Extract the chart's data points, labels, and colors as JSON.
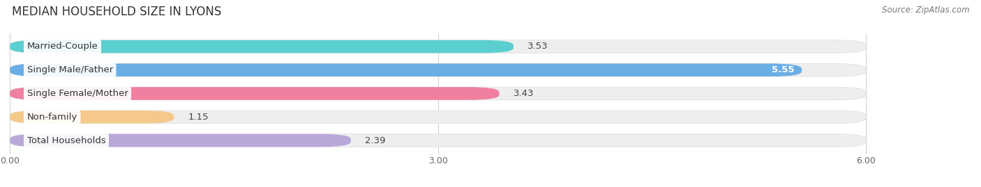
{
  "title": "MEDIAN HOUSEHOLD SIZE IN LYONS",
  "source": "Source: ZipAtlas.com",
  "categories": [
    "Married-Couple",
    "Single Male/Father",
    "Single Female/Mother",
    "Non-family",
    "Total Households"
  ],
  "values": [
    3.53,
    5.55,
    3.43,
    1.15,
    2.39
  ],
  "bar_colors": [
    "#5bcfcf",
    "#6aaee6",
    "#f07fa0",
    "#f5c98a",
    "#b8a8d8"
  ],
  "bar_bg_colors": [
    "#eeeeee",
    "#eeeeee",
    "#eeeeee",
    "#eeeeee",
    "#eeeeee"
  ],
  "xlim_data": [
    0,
    6.0
  ],
  "xlim_display": [
    0,
    6.6
  ],
  "xticks": [
    0.0,
    3.0,
    6.0
  ],
  "xtick_labels": [
    "0.00",
    "3.00",
    "6.00"
  ],
  "label_fontsize": 9.5,
  "value_fontsize": 9.5,
  "title_fontsize": 12,
  "background_color": "#ffffff"
}
